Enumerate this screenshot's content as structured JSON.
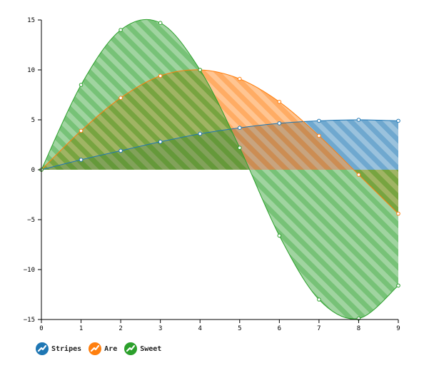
{
  "chart_data": {
    "type": "area",
    "x": [
      0,
      1,
      2,
      3,
      4,
      5,
      6,
      7,
      8,
      9
    ],
    "xlim": [
      0,
      9
    ],
    "ylim": [
      -15,
      15
    ],
    "x_ticks": [
      "0",
      "1",
      "2",
      "3",
      "4",
      "5",
      "6",
      "7",
      "8",
      "9"
    ],
    "y_ticks": [
      "15",
      "10",
      "5",
      "0",
      "−5",
      "−10",
      "−15"
    ],
    "y_tick_values": [
      15,
      10,
      5,
      0,
      -5,
      -10,
      -15
    ],
    "grid": false,
    "fill_pattern": "diagonal-stripes",
    "legend_position": "bottom-left",
    "series": [
      {
        "name": "Stripes",
        "color": "#1f77b4",
        "values": [
          0,
          1.0,
          1.9,
          2.8,
          3.6,
          4.2,
          4.65,
          4.9,
          5.0,
          4.9
        ]
      },
      {
        "name": "Are",
        "color": "#ff7f0e",
        "values": [
          0,
          3.9,
          7.2,
          9.4,
          10.0,
          9.1,
          6.8,
          3.4,
          -0.5,
          -4.4
        ]
      },
      {
        "name": "Sweet",
        "color": "#2ca02c",
        "values": [
          0,
          8.5,
          14.0,
          14.7,
          10.0,
          2.2,
          -6.6,
          -13.0,
          -14.9,
          -11.6
        ]
      }
    ]
  }
}
